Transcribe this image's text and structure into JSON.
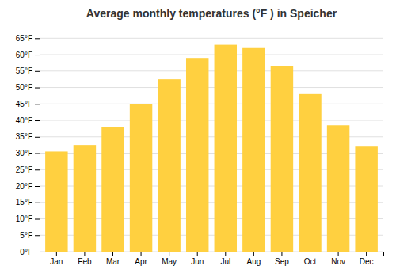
{
  "chart_data": {
    "type": "bar",
    "title": "Average monthly temperatures (°F ) in Speicher",
    "categories": [
      "Jan",
      "Feb",
      "Mar",
      "Apr",
      "May",
      "Jun",
      "Jul",
      "Aug",
      "Sep",
      "Oct",
      "Nov",
      "Dec"
    ],
    "values": [
      30.5,
      32.5,
      38.0,
      45.0,
      52.5,
      59.0,
      63.0,
      62.0,
      56.5,
      48.0,
      38.5,
      32.0
    ],
    "color": "#FFD040",
    "ylim": [
      0,
      67
    ],
    "yticks": [
      {
        "value": 0,
        "label": "0°F"
      },
      {
        "value": 5,
        "label": "5°F"
      },
      {
        "value": 10,
        "label": "10°F"
      },
      {
        "value": 15,
        "label": "15°F"
      },
      {
        "value": 20,
        "label": "20°F"
      },
      {
        "value": 25,
        "label": "25°F"
      },
      {
        "value": 30,
        "label": "30°F"
      },
      {
        "value": 35,
        "label": "35°F"
      },
      {
        "value": 40,
        "label": "40°F"
      },
      {
        "value": 45,
        "label": "45°F"
      },
      {
        "value": 50,
        "label": "50°F"
      },
      {
        "value": 55,
        "label": "55°F"
      },
      {
        "value": 60,
        "label": "60°F"
      },
      {
        "value": 65,
        "label": "65°F"
      }
    ],
    "grid": true
  }
}
